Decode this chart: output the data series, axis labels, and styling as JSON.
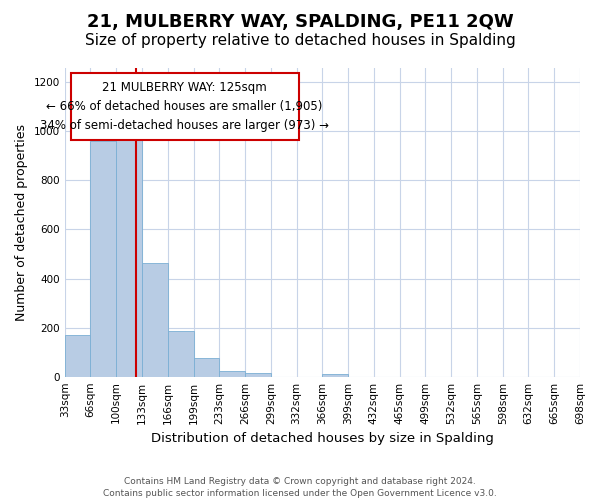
{
  "title": "21, MULBERRY WAY, SPALDING, PE11 2QW",
  "subtitle": "Size of property relative to detached houses in Spalding",
  "xlabel": "Distribution of detached houses by size in Spalding",
  "ylabel": "Number of detached properties",
  "bar_values": [
    170,
    960,
    1000,
    465,
    185,
    75,
    25,
    15,
    0,
    0,
    10,
    0,
    0,
    0,
    0,
    0,
    0,
    0,
    0,
    0
  ],
  "bin_edges": [
    0,
    1,
    2,
    3,
    4,
    5,
    6,
    7,
    8,
    9,
    10,
    11,
    12,
    13,
    14,
    15,
    16,
    17,
    18,
    19,
    20
  ],
  "bin_labels": [
    "33sqm",
    "66sqm",
    "100sqm",
    "133sqm",
    "166sqm",
    "199sqm",
    "233sqm",
    "266sqm",
    "299sqm",
    "332sqm",
    "366sqm",
    "399sqm",
    "432sqm",
    "465sqm",
    "499sqm",
    "532sqm",
    "565sqm",
    "598sqm",
    "632sqm",
    "665sqm",
    "698sqm"
  ],
  "bar_color": "#b8cce4",
  "bar_edge_color": "#7bafd4",
  "vline_x": 2.75,
  "vline_color": "#cc0000",
  "annot_line1": "21 MULBERRY WAY: 125sqm",
  "annot_line2": "← 66% of detached houses are smaller (1,905)",
  "annot_line3": "34% of semi-detached houses are larger (973) →",
  "box_edge_color": "#cc0000",
  "ylim": [
    0,
    1260
  ],
  "yticks": [
    0,
    200,
    400,
    600,
    800,
    1000,
    1200
  ],
  "background_color": "#ffffff",
  "grid_color": "#c8d4e8",
  "footer_line1": "Contains HM Land Registry data © Crown copyright and database right 2024.",
  "footer_line2": "Contains public sector information licensed under the Open Government Licence v3.0.",
  "title_fontsize": 13,
  "subtitle_fontsize": 11,
  "xlabel_fontsize": 9.5,
  "ylabel_fontsize": 9,
  "tick_fontsize": 7.5,
  "footer_fontsize": 6.5
}
